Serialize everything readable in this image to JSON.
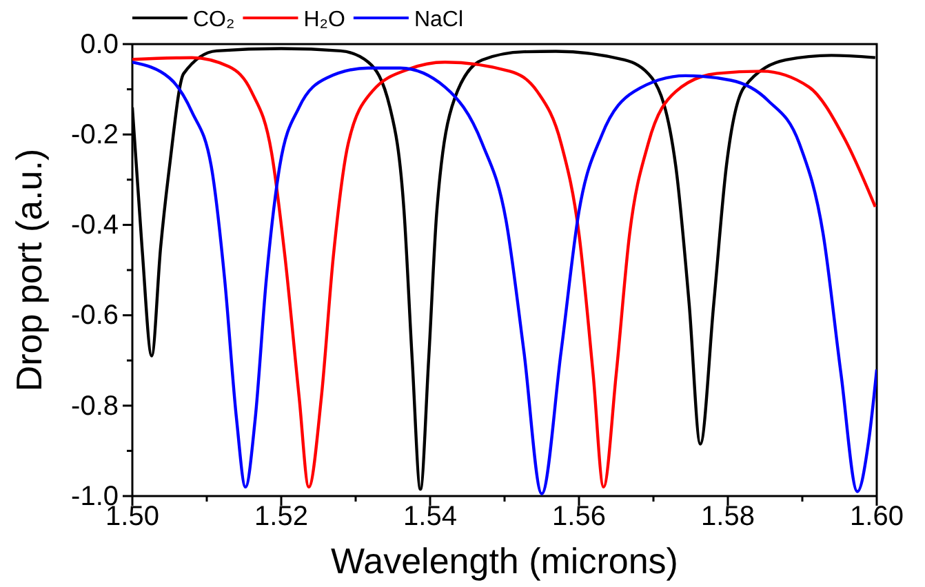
{
  "chart_data": {
    "type": "line",
    "xlabel": "Wavelength (microns)",
    "ylabel": "Drop port (a.u.)",
    "xlim": [
      1.5,
      1.6
    ],
    "ylim": [
      -1,
      0
    ],
    "xticks": [
      {
        "value": 1.5,
        "label": "1.50"
      },
      {
        "value": 1.51,
        "label": null
      },
      {
        "value": 1.52,
        "label": "1.52"
      },
      {
        "value": 1.53,
        "label": null
      },
      {
        "value": 1.54,
        "label": "1.54"
      },
      {
        "value": 1.55,
        "label": null
      },
      {
        "value": 1.56,
        "label": "1.56"
      },
      {
        "value": 1.57,
        "label": null
      },
      {
        "value": 1.58,
        "label": "1.58"
      },
      {
        "value": 1.59,
        "label": null
      },
      {
        "value": 1.6,
        "label": "1.60"
      }
    ],
    "yticks": [
      {
        "value": 0,
        "label": "0.0"
      },
      {
        "value": -0.1,
        "label": null
      },
      {
        "value": -0.2,
        "label": "-0.2"
      },
      {
        "value": -0.3,
        "label": null
      },
      {
        "value": -0.4,
        "label": "-0.4"
      },
      {
        "value": -0.5,
        "label": null
      },
      {
        "value": -0.6,
        "label": "-0.6"
      },
      {
        "value": -0.7,
        "label": null
      },
      {
        "value": -0.8,
        "label": "-0.8"
      },
      {
        "value": -0.9,
        "label": null
      },
      {
        "value": -1,
        "label": "-1.0"
      }
    ],
    "grid": false,
    "legend": "top left",
    "marker": "none",
    "line_style": "solid",
    "series": [
      {
        "name": "CO₂",
        "color": "#000000",
        "x": [
          1.5,
          1.5013,
          1.5026,
          1.5038,
          1.505,
          1.5069,
          1.5113,
          1.52,
          1.528,
          1.5317,
          1.5346,
          1.5365,
          1.5376,
          1.5387,
          1.5398,
          1.5409,
          1.5433,
          1.547,
          1.5526,
          1.5569,
          1.5661,
          1.5698,
          1.573,
          1.5748,
          1.5763,
          1.5781,
          1.5798,
          1.5822,
          1.5878,
          1.5939,
          1.5998
        ],
        "values": [
          -0.14,
          -0.45,
          -0.69,
          -0.45,
          -0.27,
          -0.065,
          -0.015,
          -0.01,
          -0.015,
          -0.04,
          -0.14,
          -0.37,
          -0.7,
          -0.985,
          -0.7,
          -0.37,
          -0.12,
          -0.035,
          -0.017,
          -0.016,
          -0.035,
          -0.075,
          -0.27,
          -0.575,
          -0.885,
          -0.575,
          -0.27,
          -0.095,
          -0.035,
          -0.025,
          -0.03
        ]
      },
      {
        "name": "H₂O",
        "color": "#ff0000",
        "x": [
          1.5,
          1.508,
          1.513,
          1.516,
          1.5187,
          1.5205,
          1.5224,
          1.5237,
          1.5254,
          1.527,
          1.529,
          1.5322,
          1.5372,
          1.542,
          1.5507,
          1.5544,
          1.5576,
          1.56,
          1.5619,
          1.5633,
          1.565,
          1.5668,
          1.5693,
          1.573,
          1.5785,
          1.5846,
          1.5909,
          1.5957,
          1.5998
        ],
        "values": [
          -0.034,
          -0.03,
          -0.05,
          -0.105,
          -0.24,
          -0.47,
          -0.78,
          -0.98,
          -0.78,
          -0.47,
          -0.22,
          -0.105,
          -0.055,
          -0.04,
          -0.06,
          -0.105,
          -0.22,
          -0.42,
          -0.73,
          -0.98,
          -0.73,
          -0.42,
          -0.22,
          -0.105,
          -0.065,
          -0.06,
          -0.095,
          -0.21,
          -0.36
        ]
      },
      {
        "name": "NaCl",
        "color": "#0000ff",
        "x": [
          1.5,
          1.505,
          1.508,
          1.5106,
          1.5124,
          1.514,
          1.5152,
          1.5165,
          1.518,
          1.5198,
          1.5224,
          1.5261,
          1.5317,
          1.536,
          1.542,
          1.547,
          1.5502,
          1.5526,
          1.555,
          1.5576,
          1.56,
          1.5631,
          1.5674,
          1.5743,
          1.5804,
          1.5854,
          1.5896,
          1.5928,
          1.5952,
          1.5974,
          1.5989,
          1.6
        ],
        "values": [
          -0.04,
          -0.075,
          -0.15,
          -0.27,
          -0.52,
          -0.83,
          -0.98,
          -0.83,
          -0.52,
          -0.27,
          -0.14,
          -0.075,
          -0.053,
          -0.053,
          -0.095,
          -0.22,
          -0.39,
          -0.68,
          -0.995,
          -0.68,
          -0.37,
          -0.2,
          -0.105,
          -0.07,
          -0.08,
          -0.125,
          -0.22,
          -0.42,
          -0.73,
          -0.99,
          -0.88,
          -0.72
        ]
      }
    ]
  }
}
